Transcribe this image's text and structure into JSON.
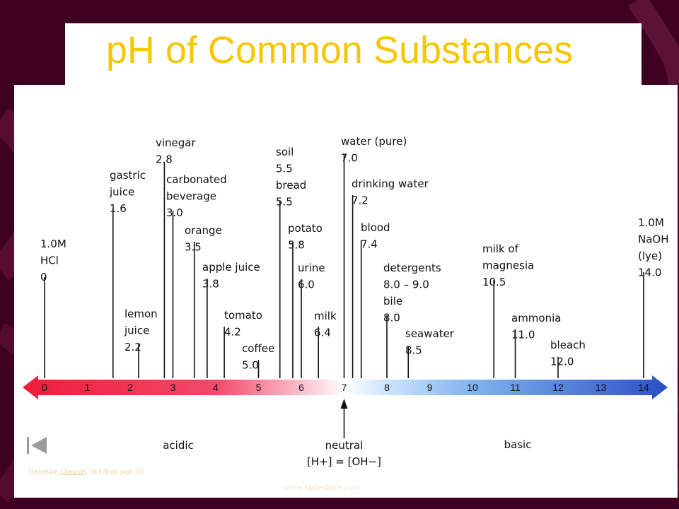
{
  "title": "pH of Common Substances",
  "colors": {
    "title": "#f6c700",
    "acid": "#ee1c3a",
    "neutral": "#ffffff",
    "base": "#2b4fc4",
    "background": "#3e0020"
  },
  "scale": {
    "min": 0,
    "max": 14,
    "ticks": [
      "0",
      "1",
      "2",
      "3",
      "4",
      "5",
      "6",
      "7",
      "8",
      "9",
      "10",
      "11",
      "12",
      "13",
      "14"
    ]
  },
  "substances": [
    {
      "ph": 0.0,
      "lines": [
        "1.0M",
        "HCl",
        "0"
      ]
    },
    {
      "ph": 1.6,
      "lines": [
        "gastric",
        "juice",
        "1.6"
      ]
    },
    {
      "ph": 2.2,
      "lines": [
        "lemon",
        "juice",
        "2.2"
      ]
    },
    {
      "ph": 2.8,
      "lines": [
        "vinegar",
        "2.8"
      ]
    },
    {
      "ph": 3.0,
      "lines": [
        "carbonated",
        "beverage",
        "3.0"
      ]
    },
    {
      "ph": 3.5,
      "lines": [
        "orange",
        "3.5"
      ]
    },
    {
      "ph": 3.8,
      "lines": [
        "apple juice",
        "3.8"
      ]
    },
    {
      "ph": 4.2,
      "lines": [
        "tomato",
        "4.2"
      ]
    },
    {
      "ph": 5.0,
      "lines": [
        "coffee",
        "5.0"
      ]
    },
    {
      "ph": 5.5,
      "lines": [
        "soil",
        "5.5",
        "bread",
        "5.5"
      ]
    },
    {
      "ph": 5.8,
      "lines": [
        "potato",
        "5.8"
      ]
    },
    {
      "ph": 6.0,
      "lines": [
        "urine",
        "6.0"
      ]
    },
    {
      "ph": 6.4,
      "lines": [
        "milk",
        "6.4"
      ]
    },
    {
      "ph": 7.0,
      "lines": [
        "water (pure)",
        "7.0"
      ]
    },
    {
      "ph": 7.2,
      "lines": [
        "drinking water",
        "7.2"
      ]
    },
    {
      "ph": 7.4,
      "lines": [
        "blood",
        "7.4"
      ]
    },
    {
      "ph": 8.0,
      "lines": [
        "detergents",
        "8.0 – 9.0",
        "bile",
        "8.0"
      ]
    },
    {
      "ph": 8.5,
      "lines": [
        "seawater",
        "8.5"
      ]
    },
    {
      "ph": 10.5,
      "lines": [
        "milk of",
        "magnesia",
        "10.5"
      ]
    },
    {
      "ph": 11.0,
      "lines": [
        "ammonia",
        "11.0"
      ]
    },
    {
      "ph": 12.0,
      "lines": [
        "bleach",
        "12.0"
      ]
    },
    {
      "ph": 14.0,
      "lines": [
        "1.0M",
        "NaOH",
        "(lye)",
        "14.0"
      ]
    }
  ],
  "regions": {
    "acidic": "acidic",
    "neutral": "neutral",
    "neutral_eq": "[H+] = [OH−]",
    "basic": "basic"
  },
  "credit": {
    "prefix": "Timberlake,",
    "link": "Chemistry",
    "suffix": "7th Edition, page 335"
  },
  "watermark": "www.slideshare.com"
}
